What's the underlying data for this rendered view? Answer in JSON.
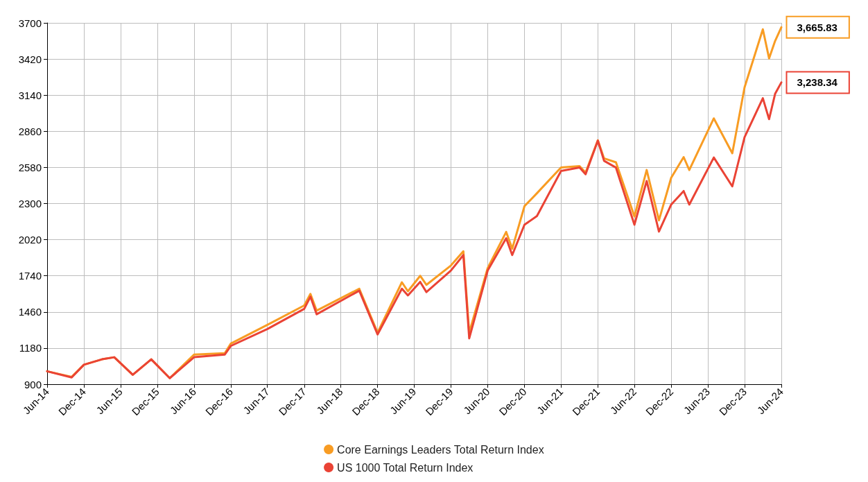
{
  "chart_data": {
    "type": "line",
    "x": [
      "2014-06",
      "2014-10",
      "2014-12",
      "2015-03",
      "2015-05",
      "2015-08",
      "2015-11",
      "2016-02",
      "2016-06",
      "2016-11",
      "2016-12",
      "2017-06",
      "2017-12",
      "2018-01",
      "2018-02",
      "2018-09",
      "2018-12",
      "2019-04",
      "2019-05",
      "2019-07",
      "2019-08",
      "2019-12",
      "2020-02",
      "2020-03",
      "2020-06",
      "2020-09",
      "2020-10",
      "2020-12",
      "2021-02",
      "2021-06",
      "2021-09",
      "2021-10",
      "2021-12",
      "2022-01",
      "2022-03",
      "2022-06",
      "2022-08",
      "2022-10",
      "2022-12",
      "2023-02",
      "2023-03",
      "2023-07",
      "2023-10",
      "2023-12",
      "2024-03",
      "2024-04",
      "2024-05",
      "2024-06"
    ],
    "series": [
      {
        "name": "Core Earnings Leaders Total Return Index",
        "color": "#f89c23",
        "values": [
          1000,
          957,
          1051,
          1093,
          1109,
          973,
          1093,
          947,
          1130,
          1140,
          1215,
          1360,
          1510,
          1600,
          1470,
          1640,
          1300,
          1690,
          1620,
          1740,
          1670,
          1820,
          1930,
          1300,
          1800,
          2080,
          1950,
          2280,
          2380,
          2580,
          2590,
          2540,
          2790,
          2650,
          2620,
          2200,
          2560,
          2170,
          2500,
          2660,
          2560,
          2960,
          2690,
          3200,
          3650,
          3425,
          3560,
          3665.83
        ]
      },
      {
        "name": "US 1000 Total Return Index",
        "color": "#ea4335",
        "values": [
          1000,
          952,
          1051,
          1093,
          1109,
          973,
          1093,
          947,
          1109,
          1130,
          1197,
          1328,
          1484,
          1578,
          1442,
          1625,
          1286,
          1640,
          1588,
          1693,
          1614,
          1781,
          1901,
          1255,
          1781,
          2031,
          1901,
          2136,
          2203,
          2553,
          2579,
          2527,
          2788,
          2631,
          2579,
          2136,
          2475,
          2083,
          2292,
          2397,
          2292,
          2657,
          2433,
          2814,
          3116,
          2954,
          3150,
          3238.34
        ]
      }
    ],
    "xlim": [
      "2014-06",
      "2024-06"
    ],
    "xticks": [
      {
        "value": "2014-06",
        "label": "Jun-14"
      },
      {
        "value": "2014-12",
        "label": "Dec-14"
      },
      {
        "value": "2015-06",
        "label": "Jun-15"
      },
      {
        "value": "2015-12",
        "label": "Dec-15"
      },
      {
        "value": "2016-06",
        "label": "Jun-16"
      },
      {
        "value": "2016-12",
        "label": "Dec-16"
      },
      {
        "value": "2017-06",
        "label": "Jun-17"
      },
      {
        "value": "2017-12",
        "label": "Dec-17"
      },
      {
        "value": "2018-06",
        "label": "Jun-18"
      },
      {
        "value": "2018-12",
        "label": "Dec-18"
      },
      {
        "value": "2019-06",
        "label": "Jun-19"
      },
      {
        "value": "2019-12",
        "label": "Dec-19"
      },
      {
        "value": "2020-06",
        "label": "Jun-20"
      },
      {
        "value": "2020-12",
        "label": "Dec-20"
      },
      {
        "value": "2021-06",
        "label": "Jun-21"
      },
      {
        "value": "2021-12",
        "label": "Dec-21"
      },
      {
        "value": "2022-06",
        "label": "Jun-22"
      },
      {
        "value": "2022-12",
        "label": "Dec-22"
      },
      {
        "value": "2023-06",
        "label": "Jun-23"
      },
      {
        "value": "2023-12",
        "label": "Dec-23"
      },
      {
        "value": "2024-06",
        "label": "Jun-24"
      }
    ],
    "ylim": [
      900,
      3700
    ],
    "yticks": [
      900,
      1180,
      1460,
      1740,
      2020,
      2300,
      2580,
      2860,
      3140,
      3420,
      3700
    ],
    "annotations": [
      {
        "text": "3,665.83",
        "x": "2024-06",
        "y": 3665.83
      },
      {
        "text": "3,238.34",
        "x": "2024-06",
        "y": 3238.34
      }
    ],
    "grid": true,
    "legend": "bottom",
    "marker": "none",
    "line_style": "solid"
  }
}
